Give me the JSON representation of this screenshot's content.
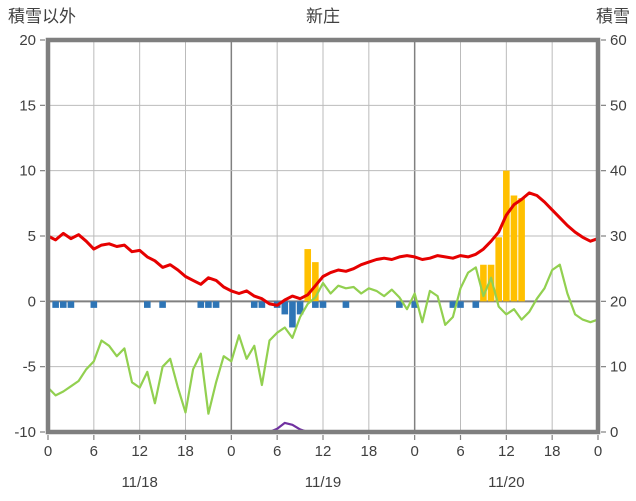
{
  "header": {
    "left_axis_title": "積雪以外",
    "title": "新庄",
    "right_axis_title": "積雪"
  },
  "chart_data": {
    "type": "combo",
    "title": "新庄",
    "left_axis": {
      "label": "積雪以外",
      "min": -10,
      "max": 20,
      "tick_step": 5,
      "tick_labels": [
        "20",
        "15",
        "10",
        "5",
        "0",
        "-5",
        "-10"
      ]
    },
    "right_axis": {
      "label": "積雪",
      "min": 0,
      "max": 60,
      "tick_step": 10,
      "tick_labels": [
        "60",
        "50",
        "40",
        "30",
        "20",
        "10",
        "0"
      ]
    },
    "x_axis": {
      "min_hour": 0,
      "max_hour": 72,
      "tick_interval": 6,
      "tick_labels": [
        "0",
        "6",
        "12",
        "18",
        "0",
        "6",
        "12",
        "18",
        "0",
        "6",
        "12",
        "18",
        "0"
      ],
      "date_labels": [
        {
          "label": "11/18",
          "hour": 12
        },
        {
          "label": "11/19",
          "hour": 36
        },
        {
          "label": "11/20",
          "hour": 60
        }
      ],
      "day_boundaries": [
        24,
        48
      ]
    },
    "style": {
      "background": "#ffffff",
      "border": "#7f7f7f",
      "minor_grid": "#bbbbbb",
      "major_grid": "#808080",
      "zero_line": "#808080",
      "text": "#404040",
      "red": "#e60000",
      "green": "#92d050",
      "blue": "#2e75b6",
      "orange": "#ffc000",
      "purple": "#7030a0"
    },
    "series": [
      {
        "id": "orange-bars",
        "type": "bar",
        "axis": "left",
        "color": "#ffc000",
        "points": [
          {
            "hour": 34,
            "value": 4.0
          },
          {
            "hour": 35,
            "value": 3.0
          },
          {
            "hour": 57,
            "value": 2.8
          },
          {
            "hour": 58,
            "value": 2.8
          },
          {
            "hour": 59,
            "value": 4.9
          },
          {
            "hour": 60,
            "value": 10.0
          },
          {
            "hour": 61,
            "value": 8.1
          },
          {
            "hour": 62,
            "value": 7.9
          }
        ]
      },
      {
        "id": "blue-bars",
        "type": "bar",
        "axis": "left",
        "color": "#2e75b6",
        "points": [
          {
            "hour": 1,
            "value": -0.5
          },
          {
            "hour": 2,
            "value": -0.5
          },
          {
            "hour": 3,
            "value": -0.5
          },
          {
            "hour": 6,
            "value": -0.5
          },
          {
            "hour": 13,
            "value": -0.5
          },
          {
            "hour": 15,
            "value": -0.5
          },
          {
            "hour": 20,
            "value": -0.5
          },
          {
            "hour": 21,
            "value": -0.5
          },
          {
            "hour": 22,
            "value": -0.5
          },
          {
            "hour": 27,
            "value": -0.5
          },
          {
            "hour": 28,
            "value": -0.5
          },
          {
            "hour": 30,
            "value": -0.5
          },
          {
            "hour": 31,
            "value": -1.0
          },
          {
            "hour": 32,
            "value": -2.0
          },
          {
            "hour": 33,
            "value": -1.0
          },
          {
            "hour": 35,
            "value": -0.5
          },
          {
            "hour": 36,
            "value": -0.5
          },
          {
            "hour": 39,
            "value": -0.5
          },
          {
            "hour": 46,
            "value": -0.5
          },
          {
            "hour": 48,
            "value": -0.5
          },
          {
            "hour": 53,
            "value": -0.5
          },
          {
            "hour": 54,
            "value": -0.5
          },
          {
            "hour": 56,
            "value": -0.5
          }
        ]
      },
      {
        "id": "purple-line",
        "type": "line",
        "axis": "right",
        "color": "#7030a0",
        "width": 2.2,
        "values": [
          0,
          0,
          0,
          0,
          0,
          0,
          0,
          0,
          0,
          0,
          0,
          0,
          0,
          0,
          0,
          0,
          0,
          0,
          0,
          0,
          0,
          0,
          0,
          0,
          0,
          0,
          0,
          0,
          0,
          0,
          0.5,
          1.4,
          1.1,
          0.4,
          0,
          0,
          0,
          0,
          0,
          0,
          0,
          0,
          0,
          0,
          0,
          0,
          0,
          0,
          0,
          0,
          0,
          0,
          0,
          0,
          0,
          0,
          0,
          0,
          0,
          0,
          0,
          0,
          0,
          0,
          0,
          0,
          0,
          0,
          0,
          0,
          0,
          0,
          0
        ]
      },
      {
        "id": "green-line",
        "type": "line",
        "axis": "left",
        "color": "#92d050",
        "width": 2.2,
        "values": [
          -6.6,
          -7.2,
          -6.9,
          -6.5,
          -6.1,
          -5.2,
          -4.6,
          -3.0,
          -3.4,
          -4.2,
          -3.6,
          -6.2,
          -6.6,
          -5.4,
          -7.8,
          -5.0,
          -4.4,
          -6.6,
          -8.5,
          -5.2,
          -4.0,
          -8.6,
          -6.2,
          -4.2,
          -4.6,
          -2.6,
          -4.4,
          -3.4,
          -6.4,
          -3.0,
          -2.4,
          -2.0,
          -2.8,
          -1.2,
          -0.2,
          0.3,
          1.4,
          0.6,
          1.2,
          1.0,
          1.1,
          0.6,
          1.0,
          0.8,
          0.4,
          0.9,
          0.3,
          -0.6,
          0.6,
          -1.6,
          0.8,
          0.4,
          -1.8,
          -1.2,
          1.0,
          2.2,
          2.6,
          0.4,
          1.8,
          -0.4,
          -1.0,
          -0.6,
          -1.4,
          -0.8,
          0.2,
          1.0,
          2.4,
          2.8,
          0.6,
          -1.0,
          -1.4,
          -1.6,
          -1.4
        ]
      },
      {
        "id": "red-line",
        "type": "line",
        "axis": "left",
        "color": "#e60000",
        "width": 3,
        "values": [
          5.0,
          4.7,
          5.2,
          4.8,
          5.1,
          4.6,
          4.0,
          4.3,
          4.4,
          4.2,
          4.3,
          3.8,
          3.9,
          3.4,
          3.1,
          2.6,
          2.8,
          2.4,
          1.9,
          1.6,
          1.3,
          1.8,
          1.6,
          1.1,
          0.8,
          0.6,
          0.8,
          0.4,
          0.2,
          -0.2,
          -0.3,
          0.1,
          0.4,
          0.2,
          0.5,
          1.2,
          1.9,
          2.2,
          2.4,
          2.3,
          2.5,
          2.8,
          3.0,
          3.2,
          3.3,
          3.2,
          3.4,
          3.5,
          3.4,
          3.2,
          3.3,
          3.5,
          3.4,
          3.3,
          3.5,
          3.4,
          3.6,
          4.0,
          4.6,
          5.3,
          6.6,
          7.4,
          7.8,
          8.3,
          8.1,
          7.6,
          7.0,
          6.4,
          5.8,
          5.3,
          4.9,
          4.6,
          4.8
        ]
      }
    ]
  }
}
